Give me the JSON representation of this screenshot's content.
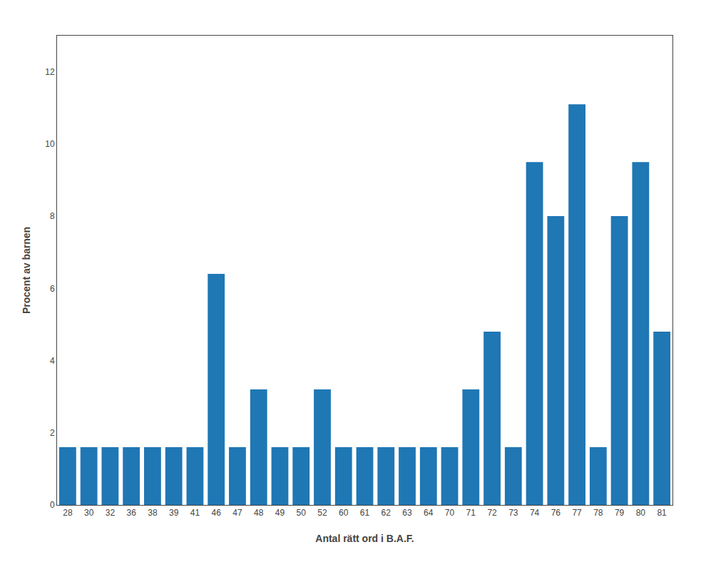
{
  "chart_data": {
    "type": "bar",
    "categories": [
      "28",
      "30",
      "32",
      "36",
      "38",
      "39",
      "41",
      "46",
      "47",
      "48",
      "49",
      "50",
      "52",
      "60",
      "61",
      "62",
      "63",
      "64",
      "70",
      "71",
      "72",
      "73",
      "74",
      "76",
      "77",
      "78",
      "79",
      "80",
      "81"
    ],
    "values": [
      1.6,
      1.6,
      1.6,
      1.6,
      1.6,
      1.6,
      1.6,
      6.4,
      1.6,
      3.2,
      1.6,
      1.6,
      3.2,
      1.6,
      1.6,
      1.6,
      1.6,
      1.6,
      1.6,
      3.2,
      4.8,
      1.6,
      9.5,
      8.0,
      11.1,
      1.6,
      8.0,
      9.5,
      4.8
    ],
    "xlabel": "Antal rätt ord i B.A.F.",
    "ylabel": "Procent av barnen",
    "ylim": [
      0,
      13
    ],
    "yticks": [
      0,
      2,
      4,
      6,
      8,
      10,
      12
    ],
    "grid": false
  }
}
